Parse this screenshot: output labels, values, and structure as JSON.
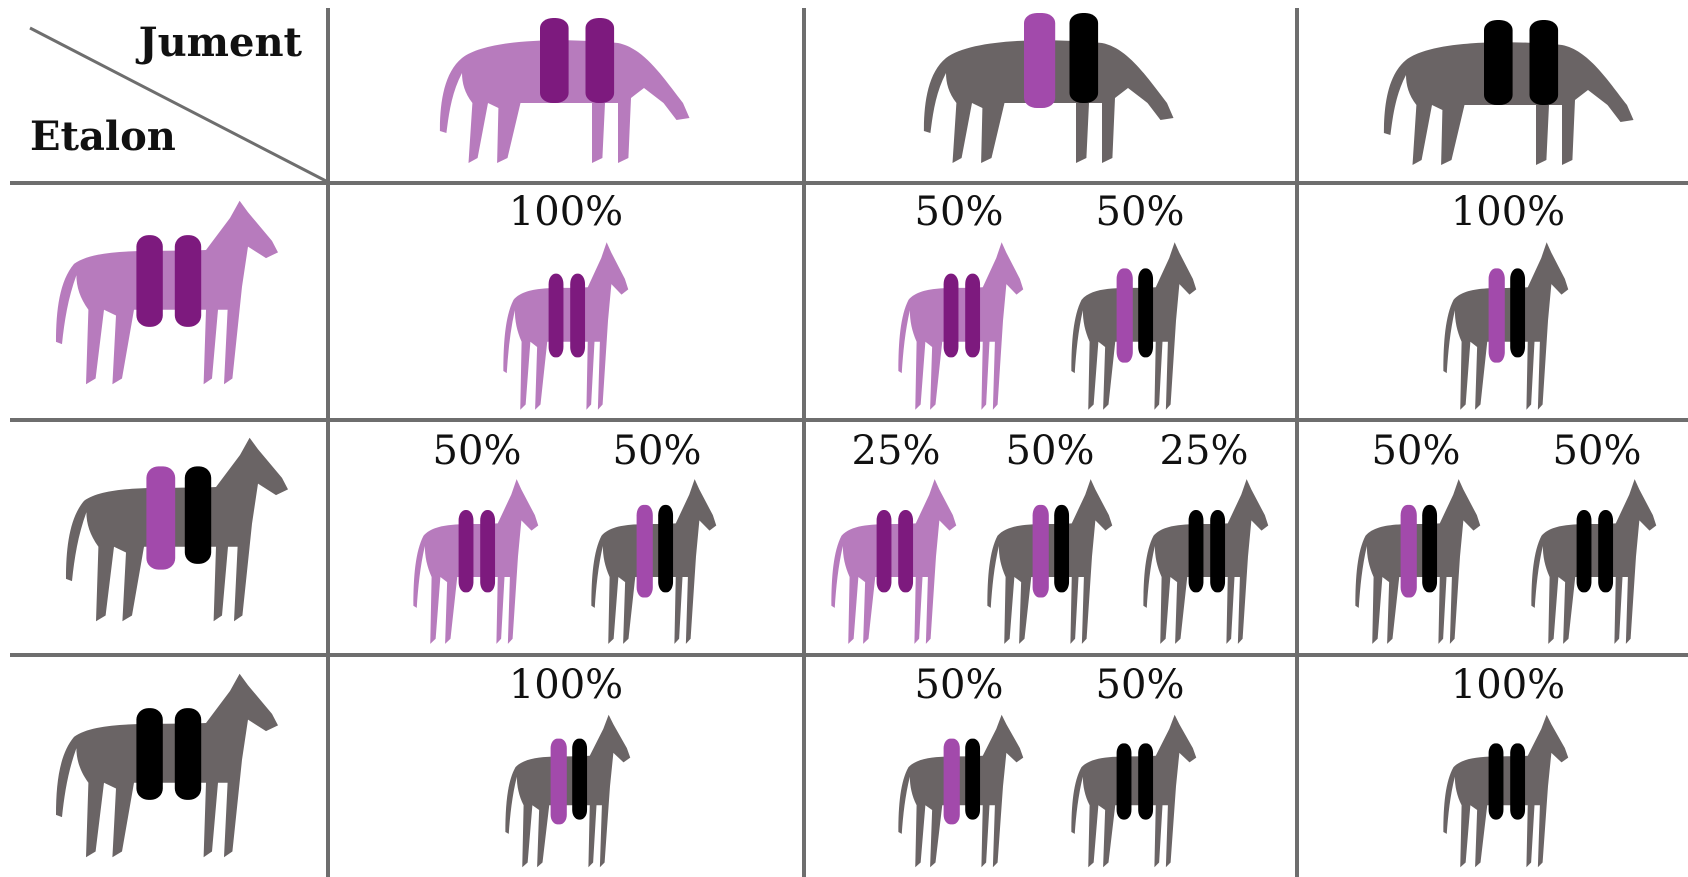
{
  "header": {
    "mare_label": "Jument",
    "stallion_label": "Etalon"
  },
  "cells": [
    [
      [
        "100%"
      ],
      [
        "50%",
        "50%"
      ],
      [
        "100%"
      ]
    ],
    [
      [
        "50%",
        "50%"
      ],
      [
        "25%",
        "50%",
        "25%"
      ],
      [
        "50%",
        "50%"
      ]
    ],
    [
      [
        "100%"
      ],
      [
        "50%",
        "50%"
      ],
      [
        "100%"
      ]
    ]
  ]
}
